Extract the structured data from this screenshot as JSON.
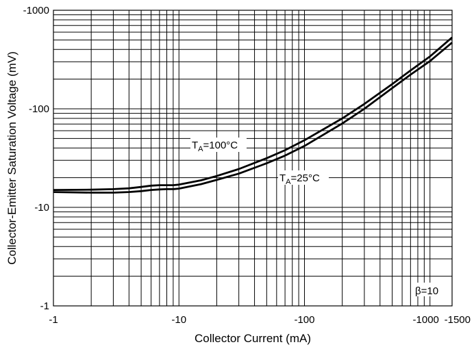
{
  "chart_data": {
    "type": "line",
    "title": "",
    "xlabel": "Collector Current (mA)",
    "ylabel": "Collector-Emitter Saturation Voltage (mV)",
    "x_scale": "log",
    "y_scale": "log",
    "xlim": [
      -1,
      -1500
    ],
    "ylim": [
      -1,
      -1000
    ],
    "x_ticks": [
      "-1",
      "-10",
      "-100",
      "-1000",
      "-1500"
    ],
    "y_ticks": [
      "-1000",
      "-100",
      "-10",
      "-1"
    ],
    "grid": true,
    "legend": "none",
    "series": [
      {
        "name": "TA=100°C",
        "label_main": "T",
        "label_sub": "A",
        "label_rest": "=100°C",
        "x": [
          -1,
          -2,
          -3,
          -4,
          -5,
          -6,
          -7,
          -8,
          -9,
          -10,
          -15,
          -20,
          -30,
          -50,
          -70,
          -100,
          -200,
          -300,
          -500,
          -700,
          -1000,
          -1500
        ],
        "y": [
          -15,
          -15.1,
          -15.3,
          -15.6,
          -16.1,
          -16.6,
          -16.8,
          -16.8,
          -16.8,
          -17.0,
          -18.8,
          -20.8,
          -24.5,
          -31.5,
          -38,
          -48,
          -80,
          -112,
          -178,
          -245,
          -340,
          -530
        ]
      },
      {
        "name": "TA=25°C",
        "label_main": "T",
        "label_sub": "A",
        "label_rest": "=25°C",
        "x": [
          -1,
          -2,
          -3,
          -4,
          -5,
          -6,
          -7,
          -8,
          -9,
          -10,
          -15,
          -20,
          -30,
          -50,
          -70,
          -100,
          -200,
          -300,
          -500,
          -700,
          -1000,
          -1500
        ],
        "y": [
          -14.3,
          -14.1,
          -14.1,
          -14.3,
          -14.6,
          -15.0,
          -15.2,
          -15.3,
          -15.3,
          -15.5,
          -17.2,
          -19.0,
          -22.0,
          -28.0,
          -33.5,
          -42,
          -71,
          -100,
          -162,
          -222,
          -305,
          -470
        ]
      }
    ],
    "annotations": [
      "β=10"
    ]
  }
}
